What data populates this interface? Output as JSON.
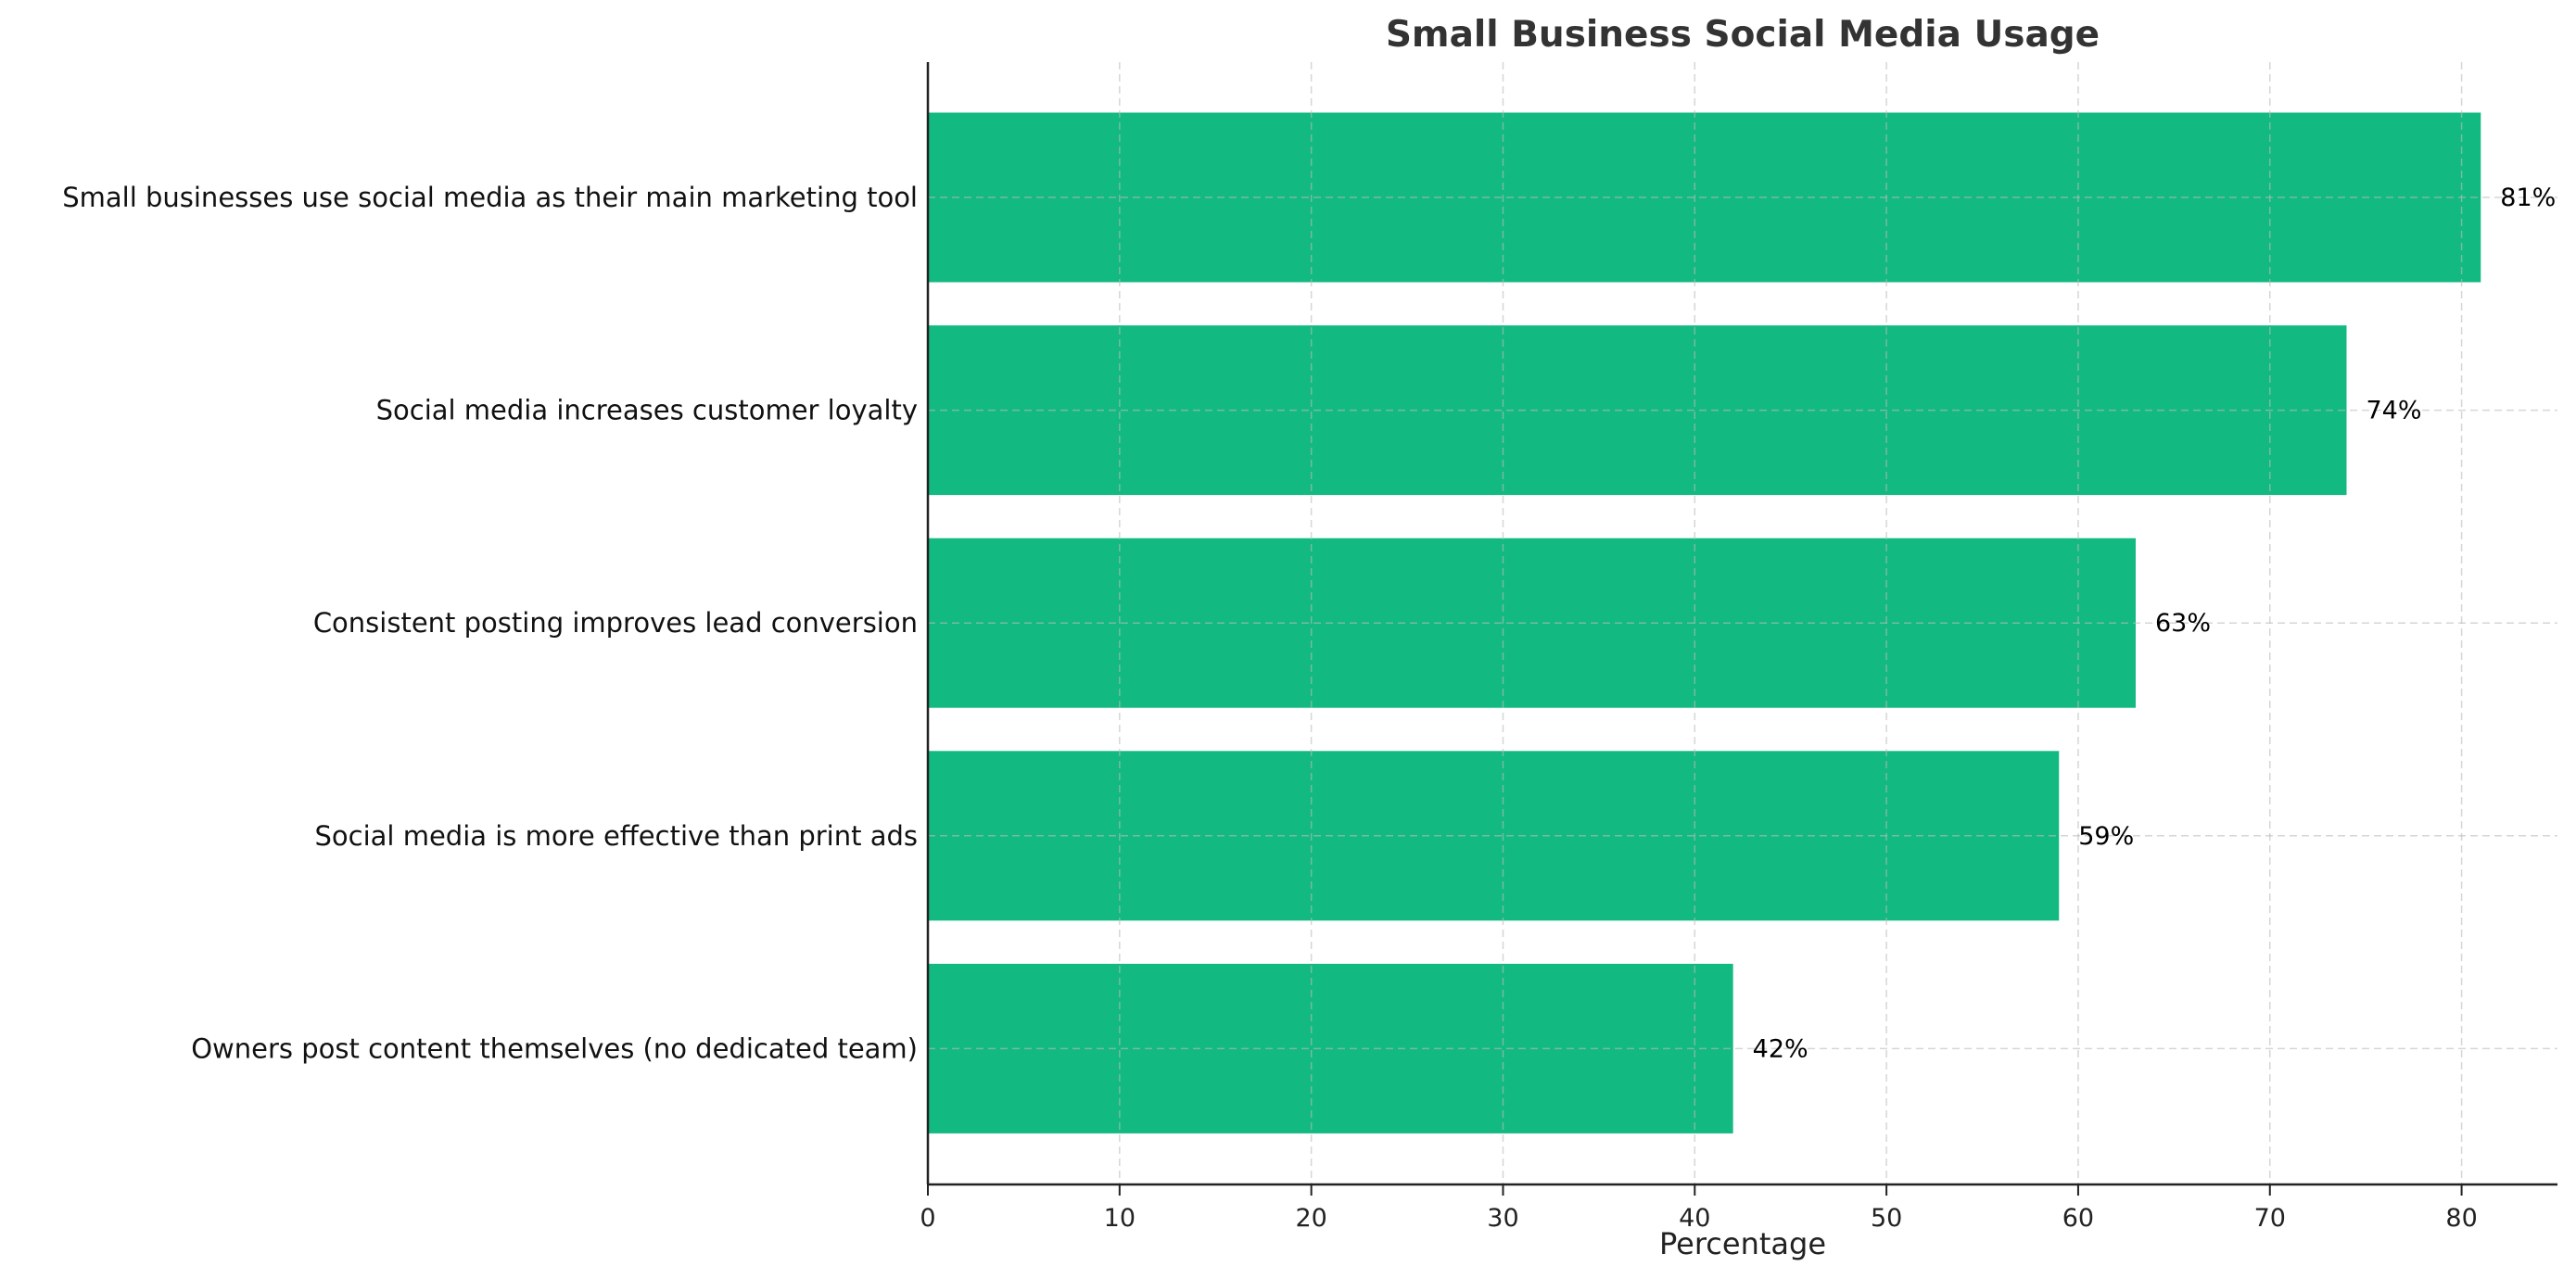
{
  "chart_data": {
    "type": "bar",
    "orientation": "horizontal",
    "title": "Small Business Social Media Usage",
    "xlabel": "Percentage",
    "ylabel": "",
    "xlim": [
      0,
      85
    ],
    "xticks": [
      0,
      10,
      20,
      30,
      40,
      50,
      60,
      70,
      80
    ],
    "grid": true,
    "categories": [
      "Small businesses use social media as their main marketing tool",
      "Social media increases customer loyalty",
      "Consistent posting improves lead conversion",
      "Social media is more effective than print ads",
      "Owners post content themselves (no dedicated team)"
    ],
    "values": [
      81,
      74,
      63,
      59,
      42
    ],
    "data_labels": [
      "81%",
      "74%",
      "63%",
      "59%",
      "42%"
    ],
    "bar_color": "#12b981"
  }
}
